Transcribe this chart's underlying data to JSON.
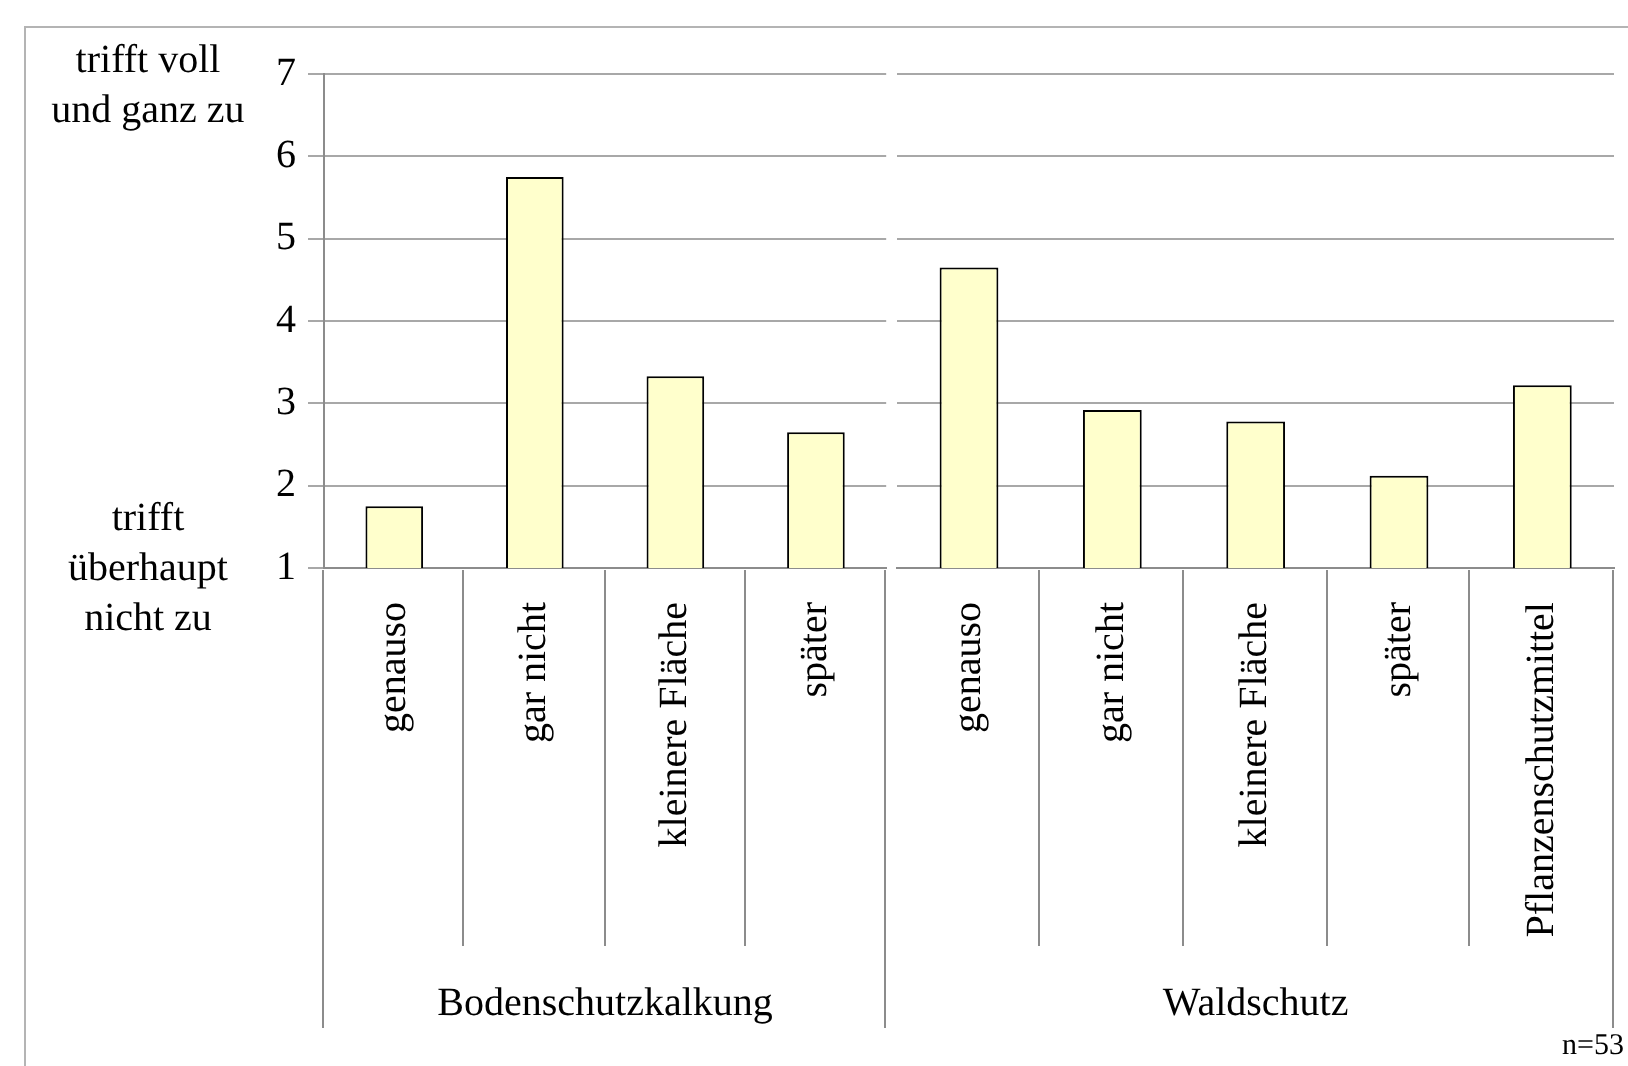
{
  "chart_data": [
    {
      "type": "bar",
      "categories": [
        "genauso",
        "gar nicht",
        "kleinere Fläche",
        "später"
      ],
      "values": [
        1.75,
        5.75,
        3.33,
        2.65
      ],
      "color": "#ffffcc",
      "xlabel": "Bodenschutzkalkung",
      "ylim": [
        1,
        7
      ],
      "yticks": [
        1,
        2,
        3,
        4,
        5,
        6,
        7
      ],
      "grid": "y",
      "annotations": [
        "trifft voll und ganz zu",
        "trifft überhaupt nicht zu"
      ]
    },
    {
      "type": "bar",
      "categories": [
        "genauso",
        "gar nicht",
        "kleinere Fläche",
        "später",
        "Pflanzenschutzmittel"
      ],
      "values": [
        4.65,
        2.92,
        2.78,
        2.12,
        3.22
      ],
      "color": "#ffffcc",
      "xlabel": "Waldschutz",
      "ylim": [
        1,
        7
      ],
      "yticks": [
        1,
        2,
        3,
        4,
        5,
        6,
        7
      ],
      "grid": "y",
      "tick_labels": "x",
      "annotations": [
        "n=53"
      ]
    }
  ]
}
